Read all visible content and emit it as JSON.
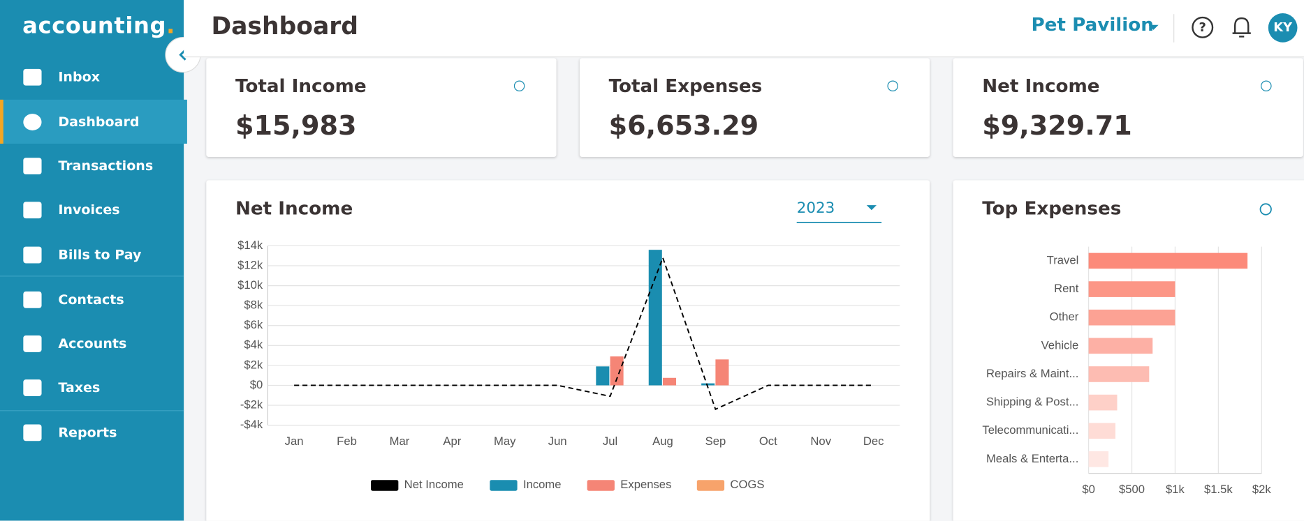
{
  "brand": {
    "name": "accounting",
    "dot": "."
  },
  "nav": [
    "Inbox",
    "Dashboard",
    "Transactions",
    "Invoices",
    "Bills to Pay",
    "Contacts",
    "Accounts",
    "Taxes",
    "Reports"
  ],
  "active_nav": 1,
  "header": {
    "title": "Dashboard",
    "company": "Pet Pavilion",
    "avatar": "KY"
  },
  "cards": [
    {
      "label": "Total Income",
      "value": "$15,983"
    },
    {
      "label": "Total Expenses",
      "value": "$6,653.29"
    },
    {
      "label": "Net Income",
      "value": "$9,329.71"
    }
  ],
  "chart_data": [
    {
      "type": "bar_line",
      "title": "Net Income",
      "year": "2023",
      "categories": [
        "Jan",
        "Feb",
        "Mar",
        "Apr",
        "May",
        "Jun",
        "Jul",
        "Aug",
        "Sep",
        "Oct",
        "Nov",
        "Dec"
      ],
      "series": [
        {
          "name": "Net Income",
          "color": "#000000",
          "kind": "line",
          "values": [
            0,
            0,
            0,
            0,
            0,
            0,
            -1100,
            12800,
            -2400,
            0,
            0,
            0
          ]
        },
        {
          "name": "Income",
          "color": "#1a8db0",
          "kind": "bar",
          "values": [
            0,
            0,
            0,
            0,
            0,
            0,
            1900,
            13600,
            200,
            0,
            0,
            0
          ]
        },
        {
          "name": "Expenses",
          "color": "#f58576",
          "kind": "bar",
          "values": [
            0,
            0,
            0,
            0,
            0,
            0,
            2900,
            750,
            2600,
            0,
            0,
            0
          ]
        },
        {
          "name": "COGS",
          "color": "#f7a36b",
          "kind": "bar",
          "values": [
            0,
            0,
            0,
            0,
            0,
            0,
            0,
            0,
            0,
            0,
            0,
            0
          ]
        }
      ],
      "ylim": [
        -4000,
        14000
      ],
      "yticks": [
        {
          "value": -4000,
          "label": "-$4k"
        },
        {
          "value": -2000,
          "label": "-$2k"
        },
        {
          "value": 0,
          "label": "$0"
        },
        {
          "value": 2000,
          "label": "$2k"
        },
        {
          "value": 4000,
          "label": "$4k"
        },
        {
          "value": 6000,
          "label": "$6k"
        },
        {
          "value": 8000,
          "label": "$8k"
        },
        {
          "value": 10000,
          "label": "$10k"
        },
        {
          "value": 12000,
          "label": "$12k"
        },
        {
          "value": 14000,
          "label": "$14k"
        }
      ],
      "grid": true,
      "legend": "bottom"
    },
    {
      "type": "hbar",
      "title": "Top Expenses",
      "categories": [
        "Travel",
        "Rent",
        "Other",
        "Vehicle",
        "Repairs & Maint...",
        "Shipping & Post...",
        "Telecommunicati...",
        "Meals & Enterta..."
      ],
      "values": [
        1837,
        1000,
        1000,
        740,
        700,
        330,
        310,
        230
      ],
      "colors": [
        "#fc8a7a",
        "#fc9686",
        "#fca294",
        "#fdb0a5",
        "#fdbcb2",
        "#fed0c8",
        "#fedcd6",
        "#fee7e3"
      ],
      "xlim": [
        0,
        2000
      ],
      "xticks": [
        {
          "value": 0,
          "label": "$0"
        },
        {
          "value": 500,
          "label": "$500"
        },
        {
          "value": 1000,
          "label": "$1k"
        },
        {
          "value": 1500,
          "label": "$1.5k"
        },
        {
          "value": 2000,
          "label": "$2k"
        }
      ],
      "grid": true
    }
  ]
}
